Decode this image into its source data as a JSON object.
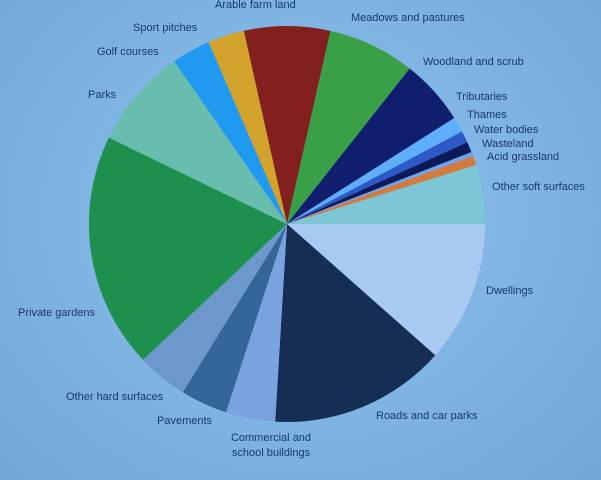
{
  "chart_data": {
    "type": "pie",
    "title": "",
    "slices": [
      {
        "label": "Dwellings",
        "value": 12.0,
        "color": "#a7c9f2"
      },
      {
        "label": "Roads and car parks",
        "value": 15.0,
        "color": "#152e54"
      },
      {
        "label": "Commercial and\nschool buildings",
        "value": 4.2,
        "color": "#7aa2de"
      },
      {
        "label": "Pavements",
        "value": 4.0,
        "color": "#35669a"
      },
      {
        "label": "Other hard surfaces",
        "value": 4.3,
        "color": "#6c98cc"
      },
      {
        "label": "Private gardens",
        "value": 20.0,
        "color": "#1e8f4c"
      },
      {
        "label": "Parks",
        "value": 8.5,
        "color": "#69bdae"
      },
      {
        "label": "Golf courses",
        "value": 3.3,
        "color": "#1f9af0"
      },
      {
        "label": "Sport pitches",
        "value": 3.1,
        "color": "#d3a22a"
      },
      {
        "label": "Arable farm land",
        "value": 7.3,
        "color": "#82201d"
      },
      {
        "label": "Meadows and pastures",
        "value": 7.4,
        "color": "#39a048"
      },
      {
        "label": "Woodland and scrub",
        "value": 5.6,
        "color": "#0f1f6d"
      },
      {
        "label": "Tributaries",
        "value": 1.3,
        "color": "#5eaefb"
      },
      {
        "label": "Thames",
        "value": 1.0,
        "color": "#2c58c8"
      },
      {
        "label": "Water bodies",
        "value": 0.9,
        "color": "#0b1a58"
      },
      {
        "label": "Wasteland",
        "value": 0.35,
        "color": "#6ca6ee"
      },
      {
        "label": "Acid grassland",
        "value": 0.8,
        "color": "#d37a3e"
      },
      {
        "label": "Other soft surfaces",
        "value": 5.0,
        "color": "#7dc6d6"
      }
    ]
  }
}
